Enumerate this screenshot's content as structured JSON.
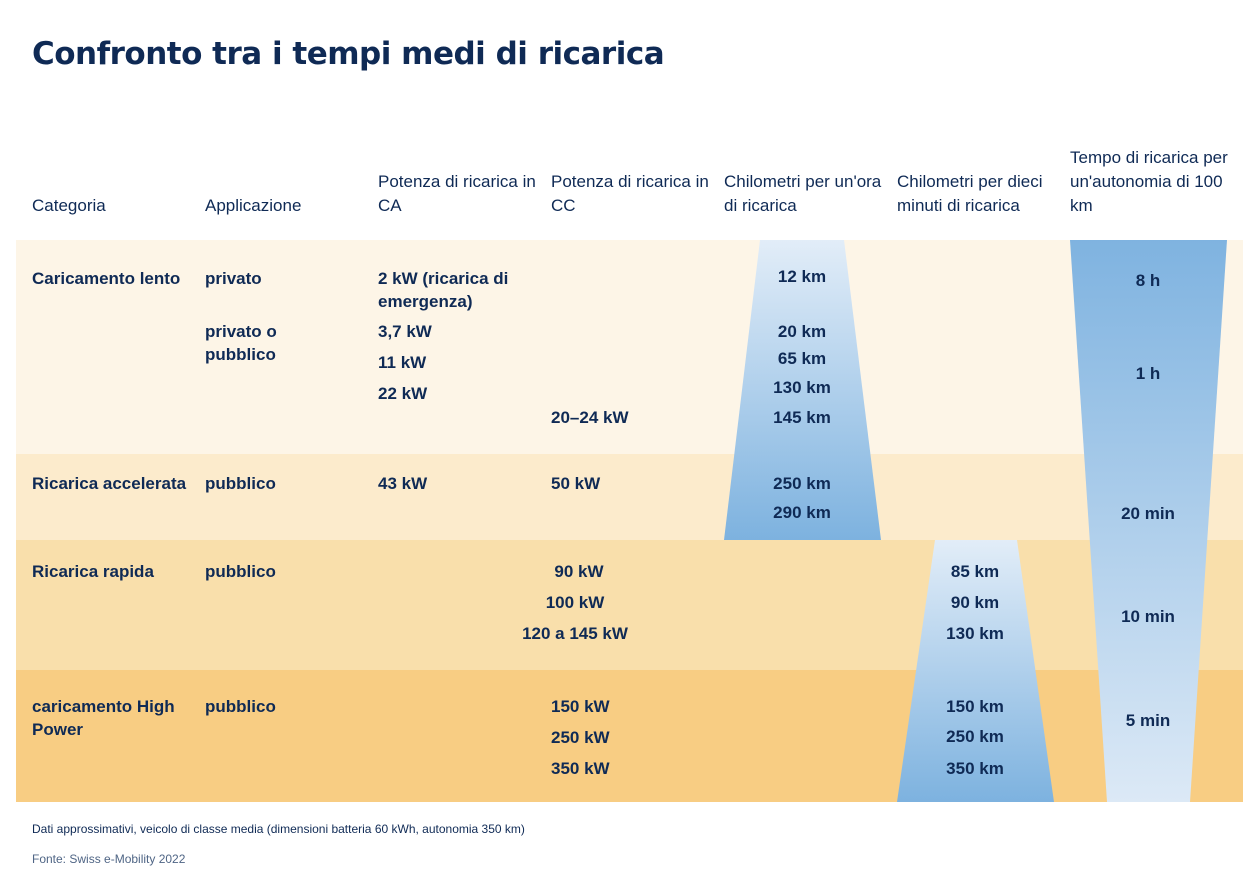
{
  "title": "Confronto tra i tempi medi di ricarica",
  "headers": [
    "Categoria",
    "Applicazione",
    "Potenza di ricarica in CA",
    "Potenza di ricarica in CC",
    "Chilometri per un'ora di ricarica",
    "Chilometri per dieci minuti di ricarica",
    "Tempo di ricarica per un'autonomia di 100 km"
  ],
  "rows": [
    {
      "category": "Caricamento lento",
      "applications": [
        "privato",
        "privato o pubblico"
      ],
      "ac_power": [
        "2 kW (ricarica di emergenza)",
        "3,7 kW",
        "11 kW",
        "22 kW"
      ],
      "dc_power": [
        "20–24 kW"
      ],
      "km_per_hour": [
        "12 km",
        "20 km",
        "65 km",
        "130 km",
        "145 km"
      ],
      "km_per_10min": [],
      "time_100km": [
        "8 h",
        "1 h"
      ]
    },
    {
      "category": "Ricarica accelerata",
      "applications": [
        "pubblico"
      ],
      "ac_power": [
        "43 kW"
      ],
      "dc_power": [
        "50 kW"
      ],
      "km_per_hour": [
        "250 km",
        "290 km"
      ],
      "km_per_10min": [],
      "time_100km": [
        "20 min"
      ]
    },
    {
      "category": "Ricarica rapida",
      "applications": [
        "pubblico"
      ],
      "ac_power": [],
      "dc_power": [
        "90 kW",
        "100 kW",
        "120 a 145 kW"
      ],
      "km_per_hour": [],
      "km_per_10min": [
        "85 km",
        "90 km",
        "130 km"
      ],
      "time_100km": [
        "10 min"
      ]
    },
    {
      "category": "caricamento High Power",
      "applications": [
        "pubblico"
      ],
      "ac_power": [],
      "dc_power": [
        "150 kW",
        "250 kW",
        "350 kW"
      ],
      "km_per_hour": [],
      "km_per_10min": [
        "150 km",
        "250 km",
        "350 km"
      ],
      "time_100km": [
        "5 min"
      ]
    }
  ],
  "footnote": "Dati approssimativi, veicolo di classe media (dimensioni batteria 60 kWh, autonomia 350 km)",
  "source": "Fonte: Swiss e-Mobility 2022",
  "colors": {
    "title": "#0f2a55",
    "band_1": "#fdf5e7",
    "band_2": "#fcebcc",
    "band_3": "#f9dfab",
    "band_4": "#f8cd83",
    "trap_light": "#e0ecf8",
    "trap_dark": "#7fb3e0"
  }
}
